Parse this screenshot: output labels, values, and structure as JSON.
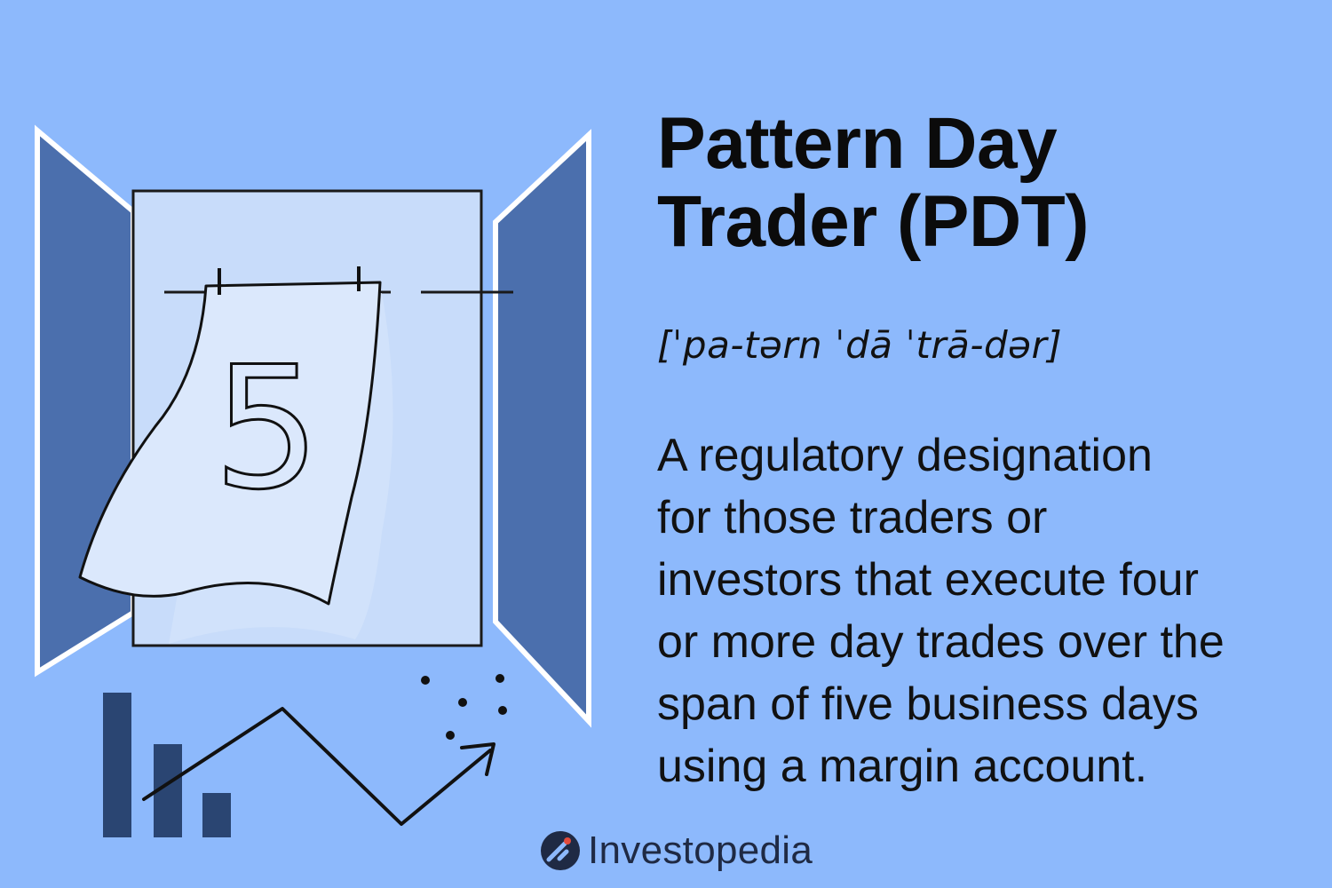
{
  "illustration": {
    "calendar_day": "5",
    "colors": {
      "panel": "#4b6fad",
      "panel_border": "#ffffff",
      "calendar_frame": "#c8dcfa",
      "paper": "#dbe8fc",
      "bars": "#2a4572",
      "ink": "#111111"
    }
  },
  "title_lines": [
    "Pattern Day",
    "Trader (PDT)"
  ],
  "pronunciation": "[ˈpa-tərn ˈdā ˈtrā-dər]",
  "definition_lines": [
    "A regulatory designation",
    "for those traders or",
    "investors that execute four",
    "or more day trades over the",
    "span of five business days",
    "using a margin account."
  ],
  "brand": {
    "name": "Investopedia",
    "logo_icon": "investopedia-logo-icon"
  }
}
